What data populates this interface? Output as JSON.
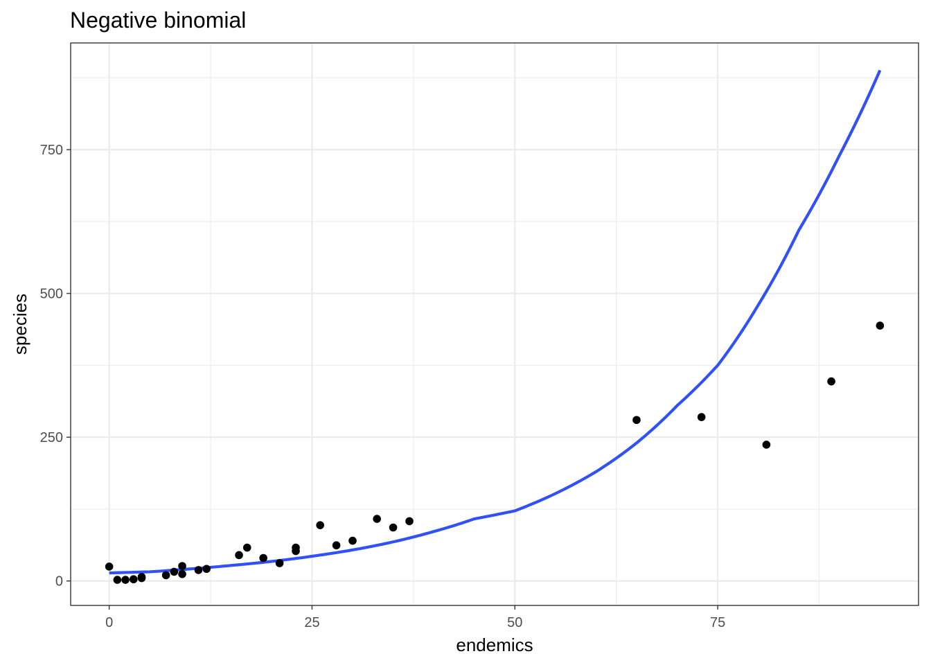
{
  "chart_data": {
    "type": "scatter",
    "title": "Negative binomial",
    "xlabel": "endemics",
    "ylabel": "species",
    "xlim": [
      -4.75,
      99.75
    ],
    "ylim": [
      -42.5,
      935.5
    ],
    "x_ticks": [
      0,
      25,
      50,
      75
    ],
    "y_ticks": [
      0,
      250,
      500,
      750
    ],
    "x_tick_labels": [
      "0",
      "25",
      "50",
      "75"
    ],
    "y_tick_labels": [
      "0",
      "250",
      "500",
      "750"
    ],
    "grid": true,
    "colors": {
      "points": "#000000",
      "fit_line": "#3050f8"
    },
    "points": [
      {
        "x": 0,
        "y": 25
      },
      {
        "x": 1,
        "y": 2
      },
      {
        "x": 2,
        "y": 2
      },
      {
        "x": 3,
        "y": 3
      },
      {
        "x": 4,
        "y": 5
      },
      {
        "x": 4,
        "y": 7
      },
      {
        "x": 7,
        "y": 10
      },
      {
        "x": 8,
        "y": 16
      },
      {
        "x": 9,
        "y": 12
      },
      {
        "x": 9,
        "y": 26
      },
      {
        "x": 11,
        "y": 19
      },
      {
        "x": 12,
        "y": 21
      },
      {
        "x": 16,
        "y": 45
      },
      {
        "x": 17,
        "y": 58
      },
      {
        "x": 19,
        "y": 40
      },
      {
        "x": 21,
        "y": 31
      },
      {
        "x": 23,
        "y": 52
      },
      {
        "x": 23,
        "y": 58
      },
      {
        "x": 26,
        "y": 97
      },
      {
        "x": 28,
        "y": 62
      },
      {
        "x": 30,
        "y": 70
      },
      {
        "x": 33,
        "y": 108
      },
      {
        "x": 35,
        "y": 93
      },
      {
        "x": 37,
        "y": 104
      },
      {
        "x": 65,
        "y": 280
      },
      {
        "x": 73,
        "y": 285
      },
      {
        "x": 81,
        "y": 237
      },
      {
        "x": 89,
        "y": 347
      },
      {
        "x": 95,
        "y": 444
      }
    ],
    "fit_line": {
      "x": [
        0,
        5,
        10,
        15,
        20,
        25,
        30,
        35,
        40,
        45,
        50,
        55,
        60,
        65,
        70,
        75,
        80,
        85,
        90,
        95
      ],
      "y": [
        14,
        16,
        21,
        27,
        34,
        43,
        54,
        68,
        86,
        108,
        122,
        152,
        190,
        240,
        305,
        375,
        480,
        610,
        740,
        888
      ]
    }
  }
}
